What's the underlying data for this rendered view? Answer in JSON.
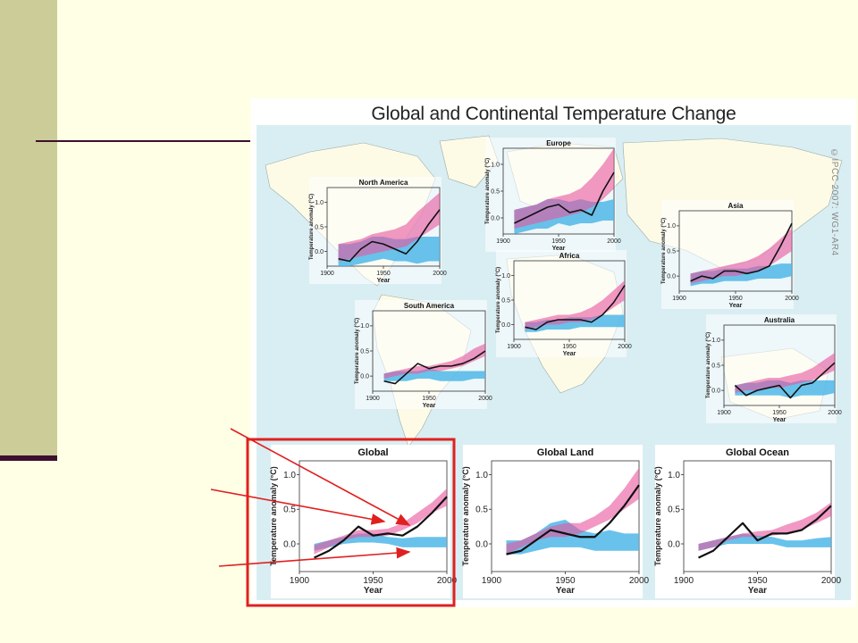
{
  "figure": {
    "title": "Global and Continental Temperature Change",
    "credit": "©IPCC 2007: WG1-AR4"
  },
  "colors": {
    "natural_band": "#4fb7e8",
    "anthropogenic_band": "#e8559c",
    "observed_line": "#111111",
    "highlight": "#e02020",
    "ocean_bg": "#d9eef2",
    "land": "#fdfbe6"
  },
  "chart_data": [
    {
      "type": "area",
      "title": "Europe",
      "xlabel": "Year",
      "ylabel": "Temperature anomaly (°C)",
      "xlim": [
        1900,
        2000
      ],
      "ylim": [
        -0.3,
        1.3
      ],
      "x_ticks": [
        "1900",
        "1950",
        "2000"
      ],
      "y_ticks": [
        "0.0",
        "0.5",
        "1.0"
      ],
      "x": [
        1910,
        1920,
        1930,
        1940,
        1950,
        1960,
        1970,
        1980,
        1990,
        2000
      ],
      "observed": [
        -0.1,
        0.0,
        0.1,
        0.2,
        0.25,
        0.1,
        0.15,
        0.05,
        0.5,
        0.85
      ],
      "natural_band": {
        "lower": [
          -0.3,
          -0.25,
          -0.2,
          -0.2,
          -0.1,
          -0.15,
          -0.1,
          -0.1,
          -0.05,
          -0.05
        ],
        "upper": [
          0.15,
          0.2,
          0.25,
          0.35,
          0.35,
          0.3,
          0.35,
          0.3,
          0.3,
          0.35
        ]
      },
      "anthropogenic_band": {
        "lower": [
          -0.2,
          -0.15,
          -0.1,
          -0.05,
          0.0,
          0.05,
          0.1,
          0.2,
          0.35,
          0.55
        ],
        "upper": [
          0.15,
          0.2,
          0.25,
          0.35,
          0.4,
          0.45,
          0.55,
          0.75,
          1.0,
          1.3
        ]
      }
    },
    {
      "type": "area",
      "title": "North America",
      "xlabel": "Year",
      "ylabel": "Temperature anomaly (°C)",
      "xlim": [
        1900,
        2000
      ],
      "ylim": [
        -0.3,
        1.3
      ],
      "x_ticks": [
        "1900",
        "1950",
        "2000"
      ],
      "y_ticks": [
        "0.0",
        "0.5",
        "1.0"
      ],
      "x": [
        1910,
        1920,
        1930,
        1940,
        1950,
        1960,
        1970,
        1980,
        1990,
        2000
      ],
      "observed": [
        -0.15,
        -0.2,
        0.05,
        0.2,
        0.15,
        0.05,
        -0.05,
        0.2,
        0.55,
        0.85
      ],
      "natural_band": {
        "lower": [
          -0.3,
          -0.3,
          -0.25,
          -0.2,
          -0.15,
          -0.2,
          -0.2,
          -0.25,
          -0.2,
          -0.2
        ],
        "upper": [
          0.15,
          0.15,
          0.2,
          0.3,
          0.3,
          0.25,
          0.25,
          0.3,
          0.3,
          0.3
        ]
      },
      "anthropogenic_band": {
        "lower": [
          -0.2,
          -0.15,
          -0.1,
          -0.05,
          0.0,
          0.05,
          0.1,
          0.25,
          0.4,
          0.55
        ],
        "upper": [
          0.15,
          0.2,
          0.25,
          0.35,
          0.4,
          0.45,
          0.55,
          0.8,
          1.0,
          1.2
        ]
      }
    },
    {
      "type": "area",
      "title": "Asia",
      "xlabel": "Year",
      "ylabel": "Temperature anomaly (°C)",
      "xlim": [
        1900,
        2000
      ],
      "ylim": [
        -0.3,
        1.3
      ],
      "x_ticks": [
        "1900",
        "1950",
        "2000"
      ],
      "y_ticks": [
        "0.0",
        "0.5",
        "1.0"
      ],
      "x": [
        1910,
        1920,
        1930,
        1940,
        1950,
        1960,
        1970,
        1980,
        1990,
        2000
      ],
      "observed": [
        -0.1,
        0.0,
        -0.05,
        0.1,
        0.1,
        0.05,
        0.1,
        0.2,
        0.6,
        1.05
      ],
      "natural_band": {
        "lower": [
          -0.2,
          -0.15,
          -0.15,
          -0.1,
          -0.1,
          -0.1,
          -0.05,
          -0.05,
          -0.05,
          0.0
        ],
        "upper": [
          0.05,
          0.1,
          0.1,
          0.15,
          0.15,
          0.15,
          0.2,
          0.2,
          0.25,
          0.25
        ]
      },
      "anthropogenic_band": {
        "lower": [
          -0.15,
          -0.1,
          -0.05,
          0.0,
          0.0,
          0.05,
          0.1,
          0.2,
          0.35,
          0.5
        ],
        "upper": [
          0.05,
          0.1,
          0.15,
          0.2,
          0.25,
          0.3,
          0.4,
          0.55,
          0.75,
          0.95
        ]
      }
    },
    {
      "type": "area",
      "title": "Africa",
      "xlabel": "Year",
      "ylabel": "Temperature anomaly (°C)",
      "xlim": [
        1900,
        2000
      ],
      "ylim": [
        -0.3,
        1.3
      ],
      "x_ticks": [
        "1900",
        "1950",
        "2000"
      ],
      "y_ticks": [
        "0.0",
        "0.5",
        "1.0"
      ],
      "x": [
        1910,
        1920,
        1930,
        1940,
        1950,
        1960,
        1970,
        1980,
        1990,
        2000
      ],
      "observed": [
        -0.05,
        -0.1,
        0.05,
        0.1,
        0.1,
        0.1,
        0.05,
        0.2,
        0.45,
        0.8
      ],
      "natural_band": {
        "lower": [
          -0.15,
          -0.15,
          -0.1,
          -0.1,
          -0.1,
          -0.05,
          -0.05,
          -0.05,
          -0.05,
          -0.05
        ],
        "upper": [
          0.05,
          0.05,
          0.1,
          0.1,
          0.15,
          0.15,
          0.15,
          0.2,
          0.2,
          0.2
        ]
      },
      "anthropogenic_band": {
        "lower": [
          -0.1,
          -0.05,
          0.0,
          0.0,
          0.05,
          0.05,
          0.1,
          0.2,
          0.35,
          0.5
        ],
        "upper": [
          0.05,
          0.1,
          0.15,
          0.2,
          0.2,
          0.25,
          0.35,
          0.5,
          0.7,
          0.9
        ]
      }
    },
    {
      "type": "area",
      "title": "South America",
      "xlabel": "Year",
      "ylabel": "Temperature anomaly (°C)",
      "xlim": [
        1900,
        2000
      ],
      "ylim": [
        -0.3,
        1.3
      ],
      "x_ticks": [
        "1900",
        "1950",
        "2000"
      ],
      "y_ticks": [
        "0.0",
        "0.5",
        "1.0"
      ],
      "x": [
        1910,
        1920,
        1930,
        1940,
        1950,
        1960,
        1970,
        1980,
        1990,
        2000
      ],
      "observed": [
        -0.1,
        -0.15,
        0.05,
        0.25,
        0.15,
        0.2,
        0.2,
        0.25,
        0.35,
        0.5
      ],
      "natural_band": {
        "lower": [
          -0.1,
          -0.1,
          -0.1,
          -0.05,
          -0.05,
          -0.1,
          -0.1,
          -0.1,
          -0.05,
          -0.05
        ],
        "upper": [
          0.05,
          0.1,
          0.1,
          0.1,
          0.15,
          0.1,
          0.1,
          0.1,
          0.1,
          0.1
        ]
      },
      "anthropogenic_band": {
        "lower": [
          -0.05,
          0.0,
          0.05,
          0.05,
          0.1,
          0.1,
          0.15,
          0.2,
          0.3,
          0.4
        ],
        "upper": [
          0.05,
          0.1,
          0.15,
          0.2,
          0.2,
          0.25,
          0.3,
          0.4,
          0.55,
          0.65
        ]
      }
    },
    {
      "type": "area",
      "title": "Australia",
      "xlabel": "Year",
      "ylabel": "Temperature anomaly (°C)",
      "xlim": [
        1900,
        2000
      ],
      "ylim": [
        -0.3,
        1.3
      ],
      "x_ticks": [
        "1900",
        "1950",
        "2000"
      ],
      "y_ticks": [
        "0.0",
        "0.5",
        "1.0"
      ],
      "x": [
        1910,
        1920,
        1930,
        1940,
        1950,
        1960,
        1970,
        1980,
        1990,
        2000
      ],
      "observed": [
        0.1,
        -0.1,
        0.0,
        0.05,
        0.1,
        -0.15,
        0.1,
        0.15,
        0.35,
        0.55
      ],
      "natural_band": {
        "lower": [
          -0.1,
          -0.1,
          -0.1,
          -0.1,
          -0.1,
          -0.15,
          -0.1,
          -0.1,
          -0.1,
          -0.05
        ],
        "upper": [
          0.1,
          0.15,
          0.15,
          0.2,
          0.2,
          0.15,
          0.2,
          0.2,
          0.2,
          0.2
        ]
      },
      "anthropogenic_band": {
        "lower": [
          -0.05,
          0.0,
          0.0,
          0.05,
          0.05,
          0.1,
          0.15,
          0.2,
          0.3,
          0.4
        ],
        "upper": [
          0.1,
          0.15,
          0.2,
          0.25,
          0.25,
          0.3,
          0.35,
          0.45,
          0.6,
          0.75
        ]
      }
    },
    {
      "type": "area",
      "title": "Global",
      "xlabel": "Year",
      "ylabel": "Temperature anomaly (°C)",
      "xlim": [
        1900,
        2000
      ],
      "ylim": [
        -0.4,
        1.2
      ],
      "x_ticks": [
        "1900",
        "1950",
        "2000"
      ],
      "y_ticks": [
        "0.0",
        "0.5",
        "1.0"
      ],
      "x": [
        1910,
        1920,
        1930,
        1940,
        1950,
        1960,
        1970,
        1980,
        1990,
        2000
      ],
      "observed": [
        -0.2,
        -0.1,
        0.05,
        0.25,
        0.12,
        0.15,
        0.12,
        0.25,
        0.45,
        0.68
      ],
      "natural_band": {
        "lower": [
          -0.1,
          -0.05,
          0.0,
          0.02,
          0.02,
          0.0,
          -0.05,
          -0.05,
          -0.05,
          -0.05
        ],
        "upper": [
          0.0,
          0.05,
          0.1,
          0.15,
          0.15,
          0.1,
          0.08,
          0.1,
          0.1,
          0.1
        ]
      },
      "anthropogenic_band": {
        "lower": [
          -0.15,
          -0.05,
          0.05,
          0.1,
          0.1,
          0.12,
          0.2,
          0.3,
          0.45,
          0.55
        ],
        "upper": [
          -0.02,
          0.05,
          0.12,
          0.2,
          0.2,
          0.22,
          0.3,
          0.45,
          0.6,
          0.8
        ]
      }
    },
    {
      "type": "area",
      "title": "Global Land",
      "xlabel": "Year",
      "ylabel": "Temperature anomaly (°C)",
      "xlim": [
        1900,
        2000
      ],
      "ylim": [
        -0.4,
        1.2
      ],
      "x_ticks": [
        "1900",
        "1950",
        "2000"
      ],
      "y_ticks": [
        "0.0",
        "0.5",
        "1.0"
      ],
      "x": [
        1910,
        1920,
        1930,
        1940,
        1950,
        1960,
        1970,
        1980,
        1990,
        2000
      ],
      "observed": [
        -0.15,
        -0.1,
        0.05,
        0.2,
        0.15,
        0.1,
        0.1,
        0.3,
        0.55,
        0.85
      ],
      "natural_band": {
        "lower": [
          -0.15,
          -0.15,
          -0.1,
          -0.05,
          -0.05,
          -0.05,
          -0.1,
          -0.1,
          -0.1,
          -0.1
        ],
        "upper": [
          0.05,
          0.05,
          0.15,
          0.3,
          0.35,
          0.2,
          0.15,
          0.2,
          0.15,
          0.15
        ]
      },
      "anthropogenic_band": {
        "lower": [
          -0.15,
          -0.05,
          0.05,
          0.1,
          0.1,
          0.15,
          0.25,
          0.35,
          0.5,
          0.65
        ],
        "upper": [
          0.0,
          0.05,
          0.15,
          0.25,
          0.3,
          0.3,
          0.4,
          0.55,
          0.8,
          1.1
        ]
      }
    },
    {
      "type": "area",
      "title": "Global Ocean",
      "xlabel": "Year",
      "ylabel": "Temperature anomaly (°C)",
      "xlim": [
        1900,
        2000
      ],
      "ylim": [
        -0.4,
        1.2
      ],
      "x_ticks": [
        "1900",
        "1950",
        "2000"
      ],
      "y_ticks": [
        "0.0",
        "0.5",
        "1.0"
      ],
      "x": [
        1910,
        1920,
        1930,
        1940,
        1950,
        1960,
        1970,
        1980,
        1990,
        2000
      ],
      "observed": [
        -0.2,
        -0.1,
        0.1,
        0.3,
        0.05,
        0.15,
        0.15,
        0.2,
        0.35,
        0.55
      ],
      "natural_band": {
        "lower": [
          -0.1,
          -0.05,
          0.0,
          0.0,
          0.0,
          0.0,
          -0.05,
          -0.05,
          -0.05,
          -0.05
        ],
        "upper": [
          0.0,
          0.05,
          0.1,
          0.15,
          0.12,
          0.1,
          0.05,
          0.05,
          0.08,
          0.1
        ]
      },
      "anthropogenic_band": {
        "lower": [
          -0.1,
          -0.05,
          0.05,
          0.1,
          0.1,
          0.12,
          0.15,
          0.2,
          0.3,
          0.4
        ],
        "upper": [
          0.0,
          0.05,
          0.1,
          0.15,
          0.18,
          0.2,
          0.28,
          0.35,
          0.45,
          0.6
        ]
      }
    }
  ]
}
